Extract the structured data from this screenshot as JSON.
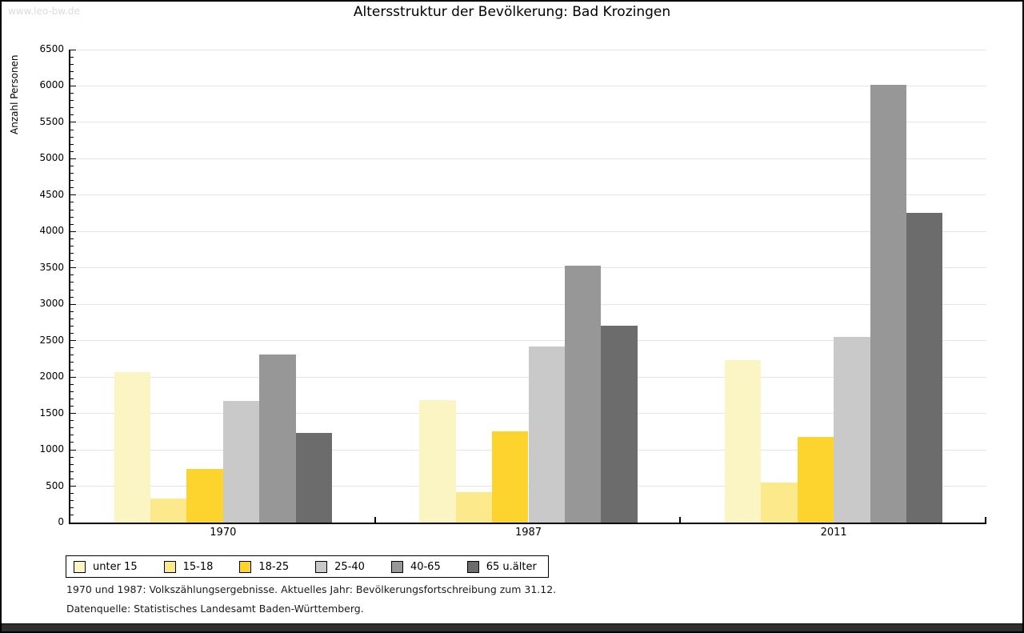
{
  "watermark": "www.leo-bw.de",
  "chart_data": {
    "type": "bar",
    "title": "Altersstruktur der Bevölkerung: Bad Krozingen",
    "xlabel": "",
    "ylabel": "Anzahl Personen",
    "categories": [
      "1970",
      "1987",
      "2011"
    ],
    "series": [
      {
        "name": "unter 15",
        "color": "#FBF4C3",
        "values": [
          2070,
          1680,
          2230
        ]
      },
      {
        "name": "15-18",
        "color": "#FCE98B",
        "values": [
          330,
          420,
          545
        ]
      },
      {
        "name": "18-25",
        "color": "#FCD42D",
        "values": [
          740,
          1255,
          1180
        ]
      },
      {
        "name": "25-40",
        "color": "#C9C9C9",
        "values": [
          1670,
          2420,
          2550
        ]
      },
      {
        "name": "40-65",
        "color": "#979797",
        "values": [
          2310,
          3535,
          6015
        ]
      },
      {
        "name": "65 u.älter",
        "color": "#6C6C6C",
        "values": [
          1235,
          2710,
          4255
        ]
      }
    ],
    "ylim": [
      0,
      6500
    ],
    "yticks": [
      0,
      500,
      1000,
      1500,
      2000,
      2500,
      3000,
      3500,
      4000,
      4500,
      5000,
      5500,
      6000,
      6500
    ],
    "yminor_step": 100,
    "grid": true,
    "legend_position": "bottom-left"
  },
  "footnotes": [
    "1970 und 1987: Volkszählungsergebnisse. Aktuelles Jahr: Bevölkerungsfortschreibung zum 31.12.",
    "Datenquelle: Statistisches Landesamt Baden-Württemberg."
  ]
}
